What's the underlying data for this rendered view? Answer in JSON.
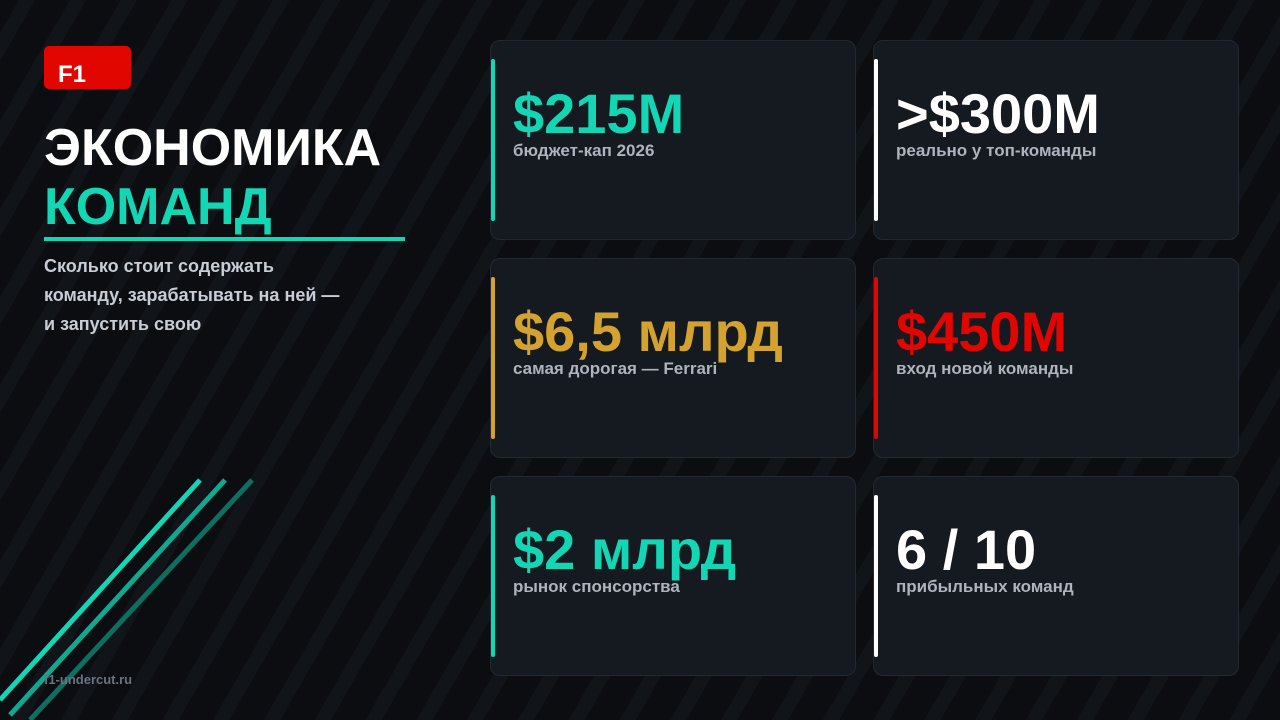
{
  "badge": "F1",
  "title": {
    "line1": "ЭКОНОМИКА",
    "line2": "КОМАНД"
  },
  "subtitle": "Сколько стоит содержать команду, зарабатывать на ней — и запустить свою",
  "footer": "f1-undercut.ru",
  "cards": [
    {
      "value": "$215M",
      "label": "бюджет-кап 2026",
      "color": "#13d6b4"
    },
    {
      "value": ">$300M",
      "label": "реально у топ-команды",
      "color": "#ffffff"
    },
    {
      "value": "$6,5 млрд",
      "label": "самая дорогая — Ferrari",
      "color": "#d4a22e"
    },
    {
      "value": "$450M",
      "label": "вход новой команды",
      "color": "#e10600"
    },
    {
      "value": "$2 млрд",
      "label": "рынок спонсорства",
      "color": "#13d6b4"
    },
    {
      "value": "6 / 10",
      "label": "прибыльных команд",
      "color": "#ffffff"
    }
  ]
}
